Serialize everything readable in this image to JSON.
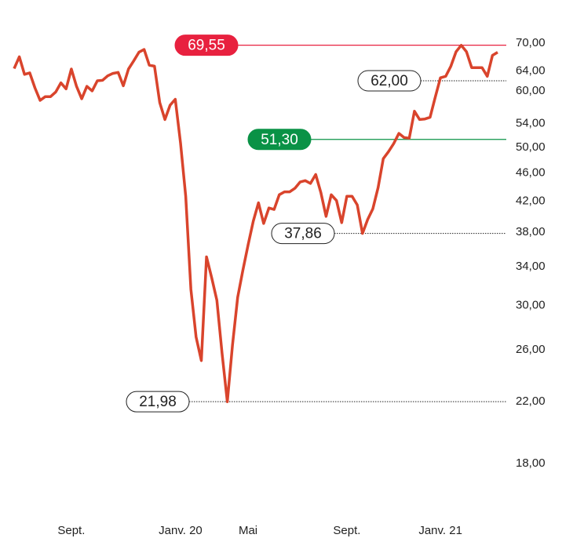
{
  "chart_data": {
    "type": "line",
    "log_scale": true,
    "color": "#d9442c",
    "categories": [
      null,
      null,
      null,
      null,
      null,
      null,
      null,
      null,
      null,
      null,
      null,
      "Sept.",
      null,
      null,
      null,
      null,
      null,
      null,
      null,
      null,
      null,
      null,
      null,
      null,
      null,
      null,
      null,
      null,
      null,
      null,
      null,
      null,
      "Janv. 20",
      null,
      null,
      null,
      null,
      null,
      null,
      null,
      null,
      null,
      null,
      null,
      null,
      "Mai",
      null,
      null,
      null,
      null,
      null,
      null,
      null,
      null,
      null,
      null,
      null,
      null,
      null,
      null,
      null,
      null,
      null,
      null,
      "Sept.",
      null,
      null,
      null,
      null,
      null,
      null,
      null,
      null,
      null,
      null,
      null,
      null,
      null,
      null,
      null,
      null,
      null,
      "Janv. 21",
      null,
      null,
      null,
      null,
      null,
      null,
      null,
      null,
      null,
      null,
      null
    ],
    "values": [
      64.5,
      67.0,
      63.3,
      63.6,
      60.6,
      58.2,
      58.9,
      58.9,
      59.8,
      61.6,
      60.4,
      64.4,
      60.9,
      58.5,
      60.9,
      60.0,
      62.0,
      62.1,
      63.0,
      63.5,
      63.7,
      61.0,
      64.4,
      66.1,
      68.0,
      68.6,
      65.2,
      65.0,
      57.8,
      54.7,
      57.3,
      58.4,
      50.7,
      42.7,
      31.6,
      27.1,
      25.1,
      35.1,
      32.8,
      30.5,
      25.7,
      21.98,
      26.4,
      30.8,
      33.6,
      36.5,
      39.4,
      41.8,
      39.1,
      41.1,
      40.9,
      42.9,
      43.3,
      43.3,
      43.8,
      44.7,
      44.9,
      44.5,
      45.8,
      43.2,
      40.0,
      42.9,
      42.1,
      39.2,
      42.7,
      42.7,
      41.5,
      37.86,
      39.6,
      41.0,
      43.9,
      48.2,
      49.3,
      50.6,
      52.3,
      51.6,
      51.5,
      56.2,
      54.7,
      54.8,
      55.1,
      58.8,
      62.6,
      62.9,
      65.0,
      68.1,
      69.55,
      68.1,
      64.7,
      64.7,
      64.7,
      62.9,
      67.3,
      68.0
    ],
    "ylim": [
      15.5,
      74.6
    ],
    "yticks": [
      {
        "value": 18,
        "label": "18,00"
      },
      {
        "value": 22,
        "label": "22,00"
      },
      {
        "value": 26,
        "label": "26,00"
      },
      {
        "value": 30,
        "label": "30,00"
      },
      {
        "value": 34,
        "label": "34,00"
      },
      {
        "value": 38,
        "label": "38,00"
      },
      {
        "value": 42,
        "label": "42,00"
      },
      {
        "value": 46,
        "label": "46,00"
      },
      {
        "value": 50,
        "label": "50,00"
      },
      {
        "value": 54,
        "label": "54,00"
      },
      {
        "value": 60,
        "label": "60,00"
      },
      {
        "value": 64,
        "label": "64,00"
      },
      {
        "value": 70,
        "label": "70,00"
      }
    ],
    "markers": [
      {
        "value": 69.55,
        "label": "69,55",
        "style": "high",
        "color": "#e8213f"
      },
      {
        "value": 62.0,
        "label": "62,00",
        "style": "dotted"
      },
      {
        "value": 51.3,
        "label": "51,30",
        "style": "target",
        "color": "#0a9246"
      },
      {
        "value": 37.86,
        "label": "37,86",
        "style": "dotted"
      },
      {
        "value": 21.98,
        "label": "21,98",
        "style": "dotted"
      }
    ]
  }
}
